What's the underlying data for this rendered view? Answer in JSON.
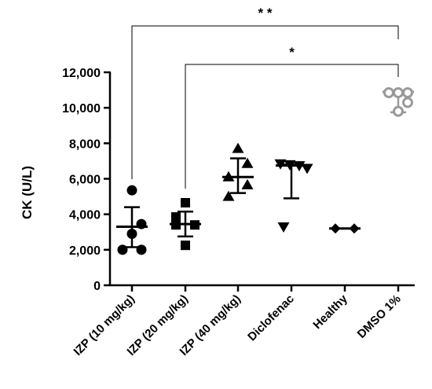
{
  "chart_data": {
    "type": "scatter",
    "ylabel": "CK (U/L)",
    "ylim": [
      0,
      12000
    ],
    "yticks": [
      0,
      2000,
      4000,
      6000,
      8000,
      10000,
      12000
    ],
    "ytick_labels": [
      "0",
      "2,000",
      "4,000",
      "6,000",
      "8,000",
      "10,000",
      "12,000"
    ],
    "categories": [
      "IZP (10 mg/kg)",
      "IZP (20 mg/kg)",
      "IZP (40 mg/kg)",
      "Diclofenac",
      "Healthy",
      "DMSO 1%"
    ],
    "groups": [
      {
        "label": "IZP (10 mg/kg)",
        "marker": "circle-filled",
        "values": [
          5350,
          3450,
          2900,
          2000,
          2000
        ],
        "mean": 3300,
        "err_low": 2150,
        "err_high": 4400,
        "color": "#000000"
      },
      {
        "label": "IZP (20 mg/kg)",
        "marker": "square-filled",
        "values": [
          4650,
          3850,
          3400,
          3400,
          2250
        ],
        "mean": 3450,
        "err_low": 2750,
        "err_high": 4150,
        "color": "#000000"
      },
      {
        "label": "IZP (40 mg/kg)",
        "marker": "triangle-up-filled",
        "values": [
          7700,
          6850,
          6100,
          5650,
          5000
        ],
        "mean": 6100,
        "err_low": 5200,
        "err_high": 7150,
        "color": "#000000"
      },
      {
        "label": "Diclofenac",
        "marker": "triangle-down-filled",
        "values": [
          6850,
          6800,
          6750,
          6600,
          3300
        ],
        "mean": 6750,
        "err_low": 4900,
        "err_high": 6800,
        "color": "#000000"
      },
      {
        "label": "Healthy",
        "marker": "diamond-filled",
        "values": [
          3200,
          3200
        ],
        "mean": 3200,
        "err_low": 3200,
        "err_high": 3200,
        "color": "#000000"
      },
      {
        "label": "DMSO 1%",
        "marker": "circle-open",
        "values": [
          10850,
          10850,
          10850,
          10300,
          9800
        ],
        "mean": 10900,
        "err_low": 9750,
        "err_high": 10950,
        "color": "#999999"
      }
    ],
    "significance": [
      {
        "from": "IZP (10 mg/kg)",
        "to": "DMSO 1%",
        "label": "* *"
      },
      {
        "from": "IZP (20 mg/kg)",
        "to": "DMSO 1%",
        "label": "*"
      }
    ]
  }
}
